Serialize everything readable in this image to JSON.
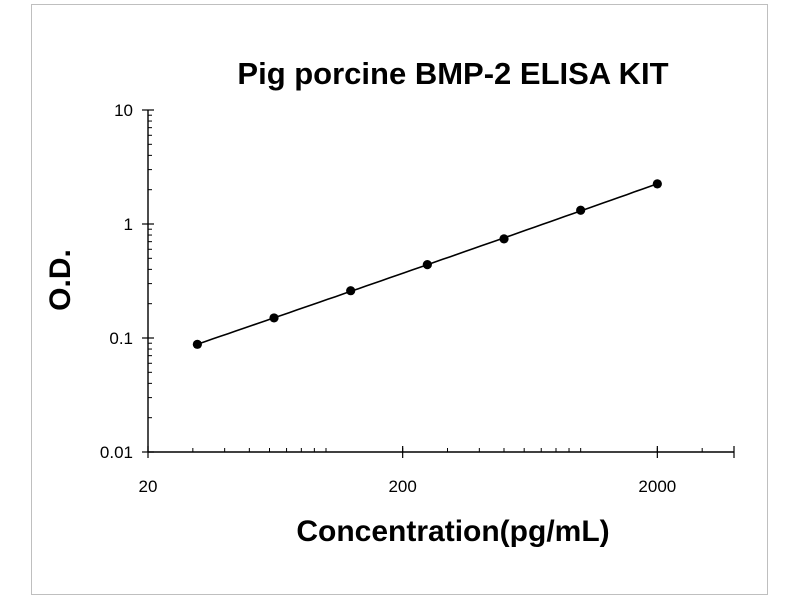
{
  "chart_data": {
    "type": "scatter",
    "title": "Pig porcine BMP-2 ELISA KIT",
    "xlabel": "Concentration(pg/mL)",
    "ylabel": "O.D.",
    "xscale": "log",
    "yscale": "log",
    "xlim": [
      20,
      4000
    ],
    "ylim": [
      0.01,
      10
    ],
    "x_ticks": [
      {
        "value": 20,
        "label": "20"
      },
      {
        "value": 200,
        "label": "200"
      },
      {
        "value": 2000,
        "label": "2000"
      }
    ],
    "y_ticks": [
      {
        "value": 0.01,
        "label": "0.01"
      },
      {
        "value": 0.1,
        "label": "0.1"
      },
      {
        "value": 1,
        "label": "1"
      },
      {
        "value": 10,
        "label": "10"
      }
    ],
    "series": [
      {
        "x": [
          31.25,
          62.5,
          125,
          250,
          500,
          1000,
          2000
        ],
        "y": [
          0.088,
          0.15,
          0.26,
          0.44,
          0.74,
          1.32,
          2.25
        ],
        "color": "#000000",
        "fit_line": true
      }
    ],
    "grid": false,
    "legend": "none"
  }
}
